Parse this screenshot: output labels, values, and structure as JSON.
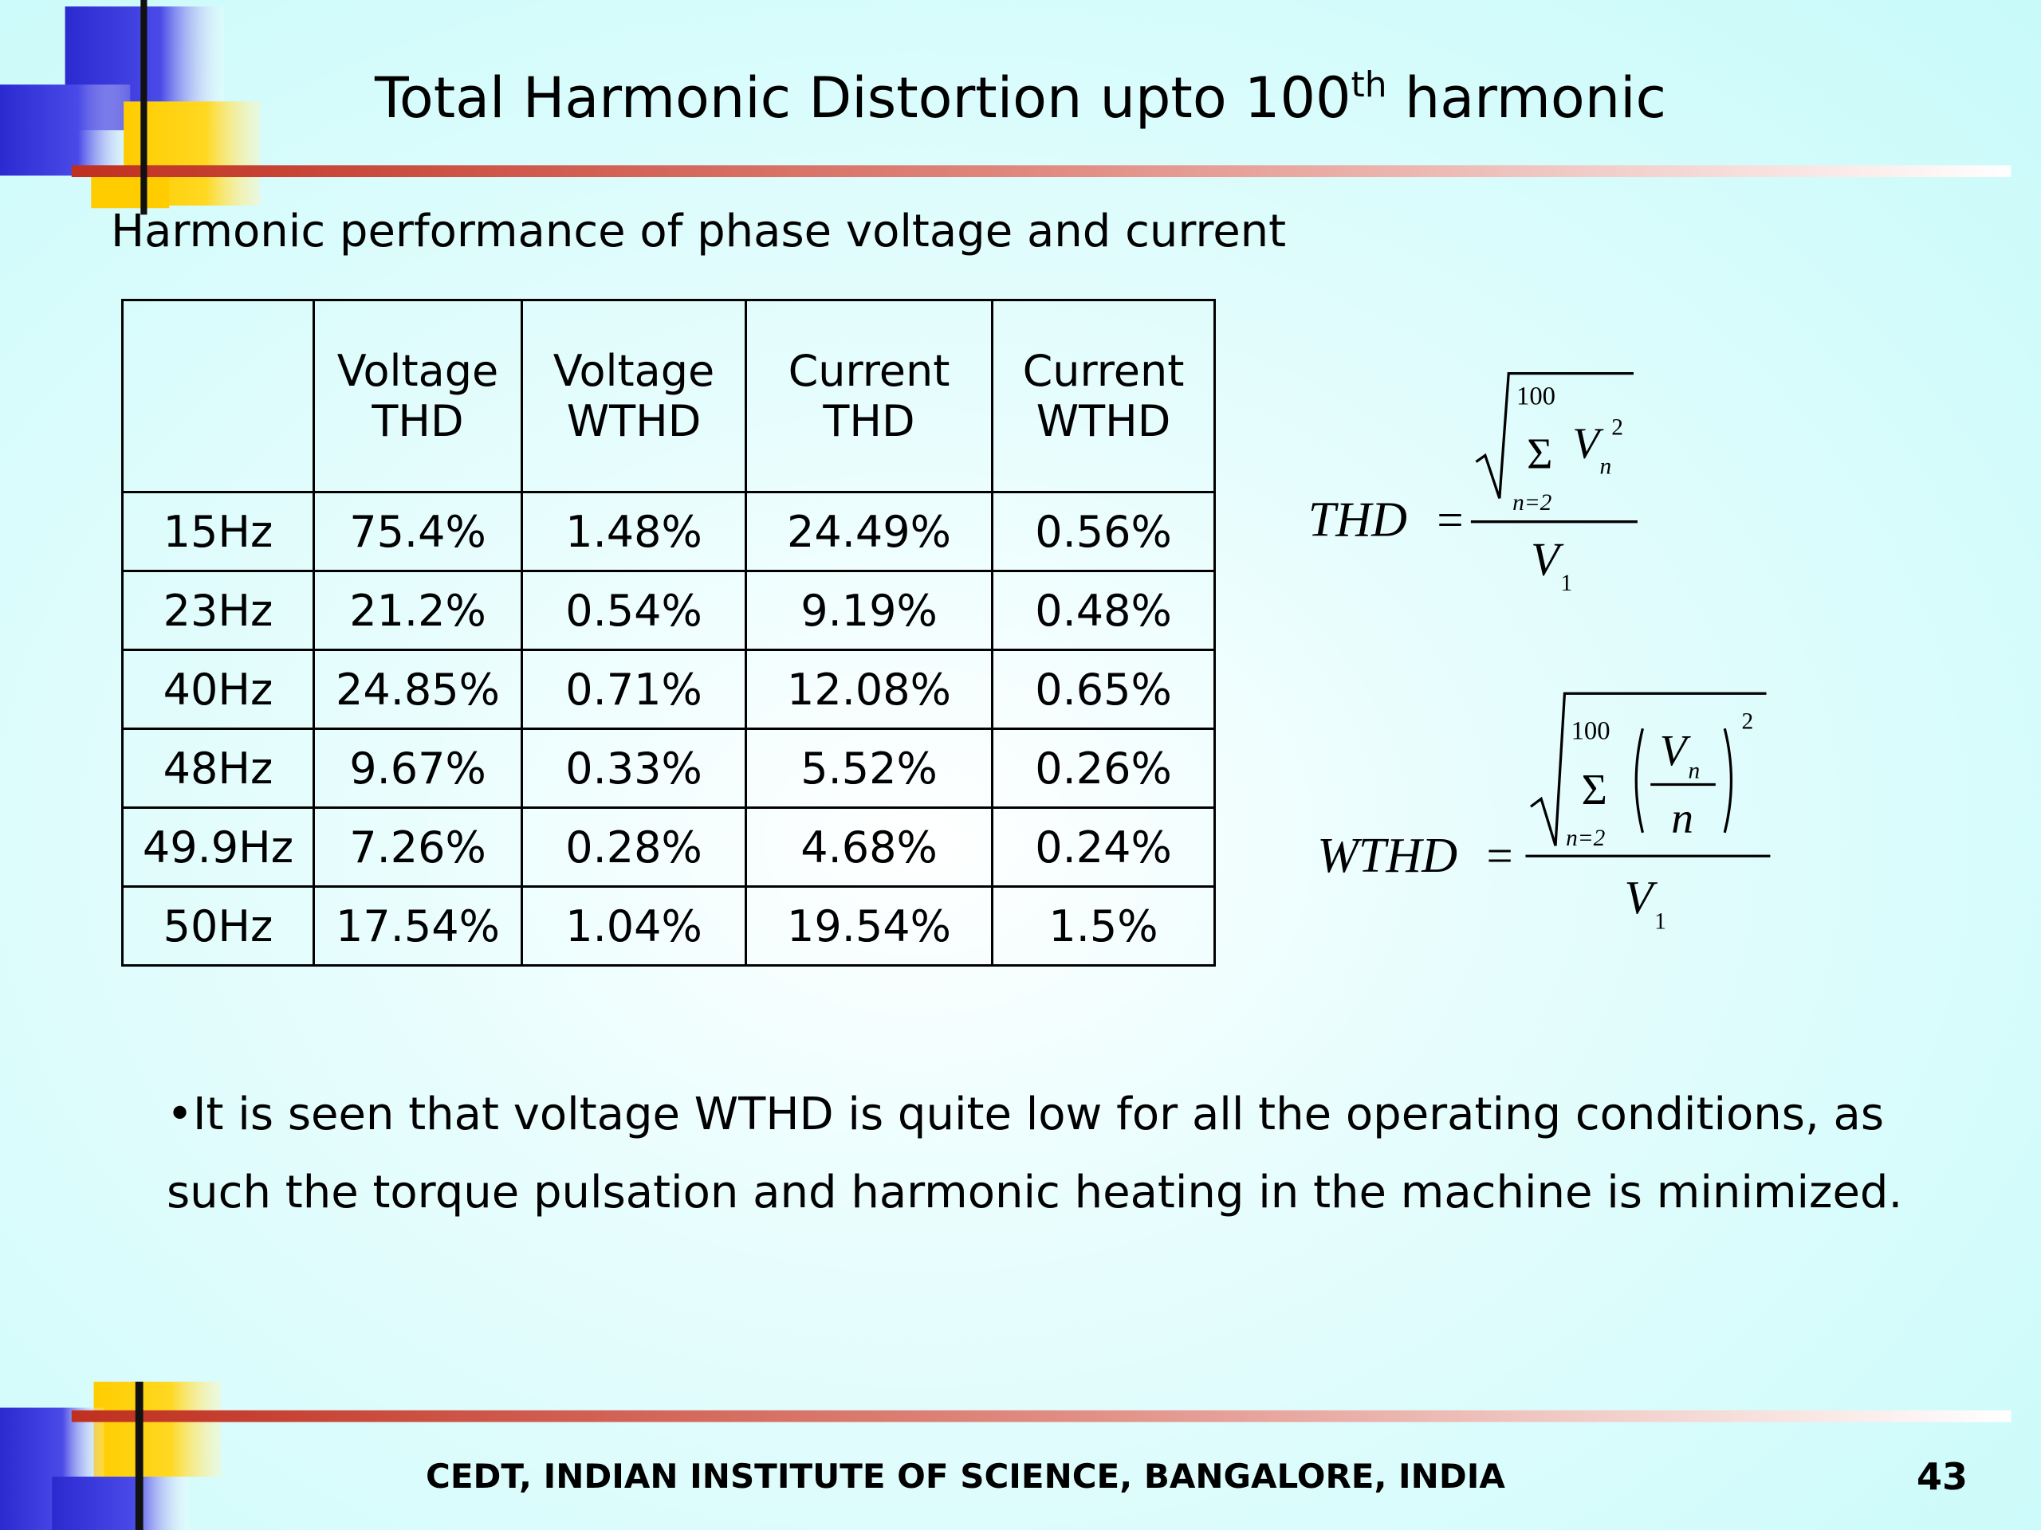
{
  "header": {
    "title": "Total Harmonic Distortion upto 100",
    "title_sup": "th",
    "title_end": " harmonic"
  },
  "subtitle": "Harmonic performance of phase voltage and current",
  "table": {
    "header": [
      "",
      "Voltage\nTHD",
      "Voltage\nWTHD",
      "Current\nTHD",
      "Current\nWTHD"
    ],
    "rows": [
      [
        "15Hz",
        "75.4%",
        "1.48%",
        "24.49%",
        "0.56%"
      ],
      [
        "23Hz",
        "21.2%",
        "0.54%",
        "9.19%",
        "0.48%"
      ],
      [
        "40Hz",
        "24.85%",
        "0.71%",
        "12.08%",
        "0.65%"
      ],
      [
        "48Hz",
        "9.67%",
        "0.33%",
        "5.52%",
        "0.26%"
      ],
      [
        "49.9Hz",
        "7.26%",
        "0.28%",
        "4.68%",
        "0.24%"
      ],
      [
        "50Hz",
        "17.54%",
        "1.04%",
        "19.54%",
        "1.5%"
      ]
    ]
  },
  "formulas": {
    "thd": {
      "label": "THD",
      "equals": "=",
      "upper": "100",
      "sigma": "Σ",
      "lower": "n=2",
      "term": "V",
      "term_sub": "n",
      "power": "2",
      "divisor": "V",
      "divisor_sub": "1"
    },
    "wthd": {
      "label": "WTHD",
      "equals": "=",
      "upper": "100",
      "sigma": "Σ",
      "lower": "n=2",
      "num": "V",
      "num_sub": "n",
      "den": "n",
      "power": "2",
      "divisor": "V",
      "divisor_sub": "1"
    }
  },
  "bullet": "•It is seen that voltage WTHD is quite low for all the operating conditions, as such the torque pulsation and harmonic heating in the machine is minimized.",
  "footer": {
    "institution": "CEDT, INDIAN INSTITUTE OF SCIENCE, BANGALORE, INDIA",
    "page_number": "43"
  }
}
